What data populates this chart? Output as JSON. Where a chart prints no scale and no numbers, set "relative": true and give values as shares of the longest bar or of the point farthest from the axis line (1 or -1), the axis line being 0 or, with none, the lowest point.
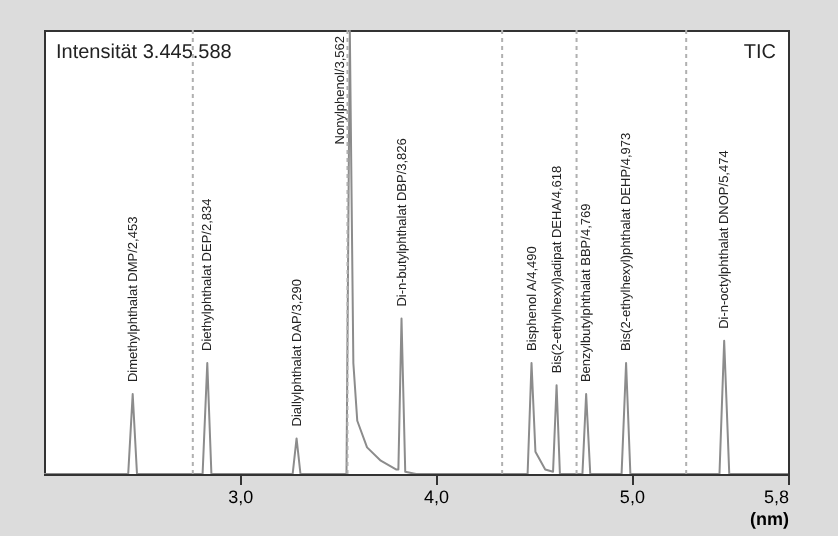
{
  "chart_data": {
    "type": "line",
    "relative": true,
    "xlabel": "(nm)",
    "xlim": [
      2.0,
      5.8
    ],
    "xticks": [
      {
        "value": 3.0,
        "label": "3,0"
      },
      {
        "value": 4.0,
        "label": "4,0"
      },
      {
        "value": 5.0,
        "label": "5,0"
      },
      {
        "value": 5.8,
        "label": "5,8"
      }
    ],
    "tick_labels": "x",
    "grid": false,
    "marker": "none",
    "line_style": "solid",
    "series": [
      {
        "color": "#8c8c8c",
        "x": [
          2.0,
          2.43,
          2.453,
          2.475,
          2.81,
          2.834,
          2.855,
          3.27,
          3.29,
          3.31,
          3.545,
          3.562,
          3.58,
          3.6,
          3.65,
          3.72,
          3.8,
          3.81,
          3.826,
          3.845,
          3.9,
          4.47,
          4.49,
          4.51,
          4.56,
          4.6,
          4.618,
          4.635,
          4.75,
          4.769,
          4.79,
          4.95,
          4.973,
          4.995,
          5.45,
          5.474,
          5.5,
          5.8
        ],
        "values": [
          0,
          0,
          0.18,
          0,
          0,
          0.25,
          0,
          0,
          0.08,
          0,
          0,
          1.0,
          0.25,
          0.12,
          0.06,
          0.03,
          0.01,
          0.01,
          0.35,
          0.005,
          0,
          0,
          0.25,
          0.05,
          0.01,
          0.005,
          0.2,
          0,
          0,
          0.18,
          0,
          0,
          0.25,
          0,
          0,
          0.3,
          0,
          0
        ]
      }
    ],
    "ref_lines": [
      {
        "axis": "x",
        "value": 2.76,
        "color": "#b0b0b0",
        "line_style": "dotted"
      },
      {
        "axis": "x",
        "value": 3.55,
        "color": "#b0b0b0",
        "line_style": "dotted"
      },
      {
        "axis": "x",
        "value": 4.34,
        "color": "#b0b0b0",
        "line_style": "dotted"
      },
      {
        "axis": "x",
        "value": 4.72,
        "color": "#b0b0b0",
        "line_style": "dotted"
      },
      {
        "axis": "x",
        "value": 5.28,
        "color": "#b0b0b0",
        "line_style": "dotted"
      }
    ],
    "annotations": [
      "Intensität 3.445.588",
      "TIC",
      {
        "text": "Dimethylphthalat DMP/2,453",
        "x": 2.453,
        "y": 0.18
      },
      {
        "text": "Diethylphthalat DEP/2,834",
        "x": 2.834,
        "y": 0.25
      },
      {
        "text": "Diallylphthalat DAP/3,290",
        "x": 3.29,
        "y": 0.08
      },
      {
        "text": "Nonylphenol/3,562",
        "x": 3.562,
        "y": 1.0
      },
      {
        "text": "Di-n-butylphthalat DBP/3,826",
        "x": 3.826,
        "y": 0.35
      },
      {
        "text": "Bisphenol A/4,490",
        "x": 4.49,
        "y": 0.25
      },
      {
        "text": "Bis(2-ethylhexyl)adipat DEHA/4,618",
        "x": 4.618,
        "y": 0.2
      },
      {
        "text": "Benzylbutylphthalat BBP/4,769",
        "x": 4.769,
        "y": 0.18
      },
      {
        "text": "Bis(2-ethylhexyl)phthalat DEHP/4,973",
        "x": 4.973,
        "y": 0.25
      },
      {
        "text": "Di-n-octylphthalat DNOP/5,474",
        "x": 5.474,
        "y": 0.3
      }
    ]
  }
}
